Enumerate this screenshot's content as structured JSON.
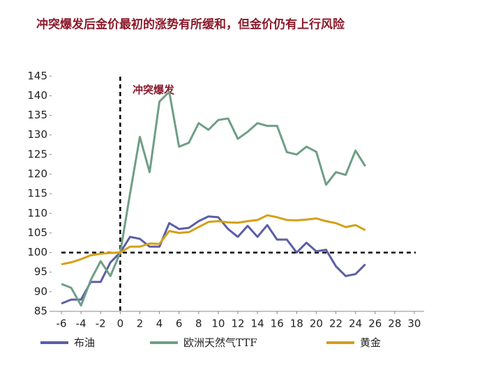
{
  "chart_data": {
    "type": "line",
    "title": "冲突爆发后金价最初的涨势有所缓和，但金价仍有上行风险",
    "annotation": "冲突爆发",
    "x": [
      -6,
      -5,
      -4,
      -3,
      -2,
      -1,
      0,
      1,
      2,
      3,
      4,
      5,
      6,
      7,
      8,
      9,
      10,
      11,
      12,
      13,
      14,
      15,
      16,
      17,
      18,
      19,
      20,
      21,
      22,
      23,
      24,
      25
    ],
    "series": [
      {
        "name": "布油",
        "color": "#5b5ea6",
        "values": [
          87,
          88,
          88,
          92.5,
          92.5,
          97.5,
          100,
          104,
          103.5,
          101.5,
          101.5,
          107.5,
          106,
          106.3,
          108,
          109.2,
          109,
          106,
          104,
          106.8,
          104,
          107,
          103.3,
          103.3,
          100,
          102.5,
          100.3,
          100.7,
          96.5,
          94,
          94.5,
          97
        ]
      },
      {
        "name": "欧洲天然气TTF",
        "color": "#6f9e86",
        "values": [
          92,
          91,
          86.5,
          93,
          97.8,
          94,
          100,
          115,
          129.5,
          120.5,
          138.5,
          141,
          127,
          128,
          133,
          131.3,
          133.8,
          134.2,
          129,
          130.8,
          133,
          132.3,
          132.3,
          125.6,
          125,
          127,
          125.7,
          117.3,
          120.5,
          119.8,
          126,
          122
        ]
      },
      {
        "name": "黄金",
        "color": "#d4a017",
        "values": [
          97,
          97.5,
          98.3,
          99.3,
          99.7,
          99.9,
          100,
          101.5,
          101.5,
          102.3,
          102.2,
          105.5,
          105,
          105.2,
          106.5,
          107.8,
          108,
          107.7,
          107.6,
          108,
          108.3,
          109.5,
          109,
          108.3,
          108.2,
          108.4,
          108.7,
          108,
          107.5,
          106.5,
          107,
          105.7
        ]
      }
    ],
    "reference_lines": {
      "x": 0,
      "y": 100
    },
    "xlim": [
      -7,
      31
    ],
    "xticks": [
      -6,
      -4,
      -2,
      0,
      2,
      4,
      6,
      8,
      10,
      12,
      14,
      16,
      18,
      20,
      22,
      24,
      26,
      28,
      30
    ],
    "ylim": [
      85,
      147
    ],
    "yticks": [
      85,
      90,
      95,
      100,
      105,
      110,
      115,
      120,
      125,
      130,
      135,
      140,
      145
    ],
    "grid": false,
    "legend": "bottom"
  }
}
